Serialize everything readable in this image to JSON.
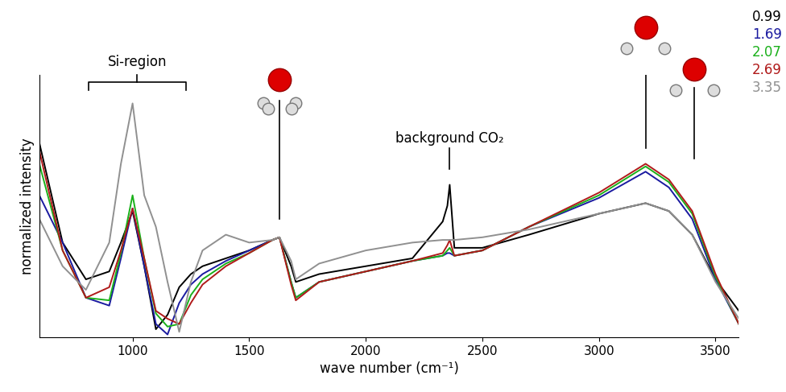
{
  "chart_data": {
    "type": "line",
    "x_label": "wave number (cm⁻¹)",
    "y_label": "normalized intensity",
    "annotations": [
      "Si-region",
      "background CO₂"
    ],
    "x": [
      600,
      700,
      800,
      900,
      950,
      1000,
      1050,
      1100,
      1150,
      1200,
      1250,
      1300,
      1400,
      1500,
      1600,
      1630,
      1680,
      1700,
      1800,
      2000,
      2200,
      2330,
      2350,
      2360,
      2380,
      2500,
      2700,
      3000,
      3200,
      3300,
      3400,
      3500,
      3600
    ],
    "series": [
      {
        "name": "0.99",
        "color": "#000000",
        "values": [
          0.74,
          0.36,
          0.22,
          0.25,
          0.36,
          0.48,
          0.27,
          0.03,
          0.085,
          0.19,
          0.24,
          0.27,
          0.3,
          0.33,
          0.37,
          0.38,
          0.27,
          0.21,
          0.24,
          0.27,
          0.3,
          0.44,
          0.5,
          0.58,
          0.34,
          0.34,
          0.39,
          0.47,
          0.51,
          0.48,
          0.39,
          0.22,
          0.1
        ]
      },
      {
        "name": "1.69",
        "color": "#1a1aa0",
        "values": [
          0.54,
          0.36,
          0.15,
          0.12,
          0.3,
          0.49,
          0.27,
          0.05,
          0.01,
          0.13,
          0.2,
          0.24,
          0.29,
          0.33,
          0.37,
          0.38,
          0.21,
          0.15,
          0.21,
          0.25,
          0.29,
          0.31,
          0.32,
          0.32,
          0.31,
          0.33,
          0.42,
          0.53,
          0.63,
          0.57,
          0.45,
          0.22,
          0.05
        ]
      },
      {
        "name": "2.07",
        "color": "#1ab01a",
        "values": [
          0.66,
          0.33,
          0.15,
          0.14,
          0.32,
          0.54,
          0.3,
          0.09,
          0.04,
          0.05,
          0.16,
          0.22,
          0.28,
          0.32,
          0.37,
          0.38,
          0.21,
          0.15,
          0.21,
          0.25,
          0.29,
          0.31,
          0.33,
          0.34,
          0.31,
          0.33,
          0.42,
          0.54,
          0.65,
          0.59,
          0.47,
          0.23,
          0.05
        ]
      },
      {
        "name": "2.69",
        "color": "#b01a1a",
        "values": [
          0.71,
          0.33,
          0.15,
          0.19,
          0.33,
          0.49,
          0.3,
          0.1,
          0.07,
          0.05,
          0.13,
          0.2,
          0.27,
          0.32,
          0.37,
          0.38,
          0.2,
          0.14,
          0.21,
          0.25,
          0.29,
          0.32,
          0.35,
          0.37,
          0.31,
          0.33,
          0.42,
          0.55,
          0.66,
          0.6,
          0.48,
          0.24,
          0.05
        ]
      },
      {
        "name": "3.35",
        "color": "#909090",
        "values": [
          0.45,
          0.27,
          0.18,
          0.36,
          0.66,
          0.89,
          0.54,
          0.42,
          0.21,
          0.02,
          0.21,
          0.33,
          0.39,
          0.36,
          0.37,
          0.38,
          0.29,
          0.22,
          0.28,
          0.33,
          0.36,
          0.37,
          0.37,
          0.37,
          0.37,
          0.38,
          0.41,
          0.47,
          0.51,
          0.48,
          0.39,
          0.21,
          0.07
        ]
      }
    ],
    "xlim": [
      600,
      3600
    ],
    "ylim": [
      0,
      1
    ],
    "xticks": [
      1000,
      1500,
      2000,
      2500,
      3000,
      3500
    ],
    "tick_labels": "x",
    "grid": false
  }
}
